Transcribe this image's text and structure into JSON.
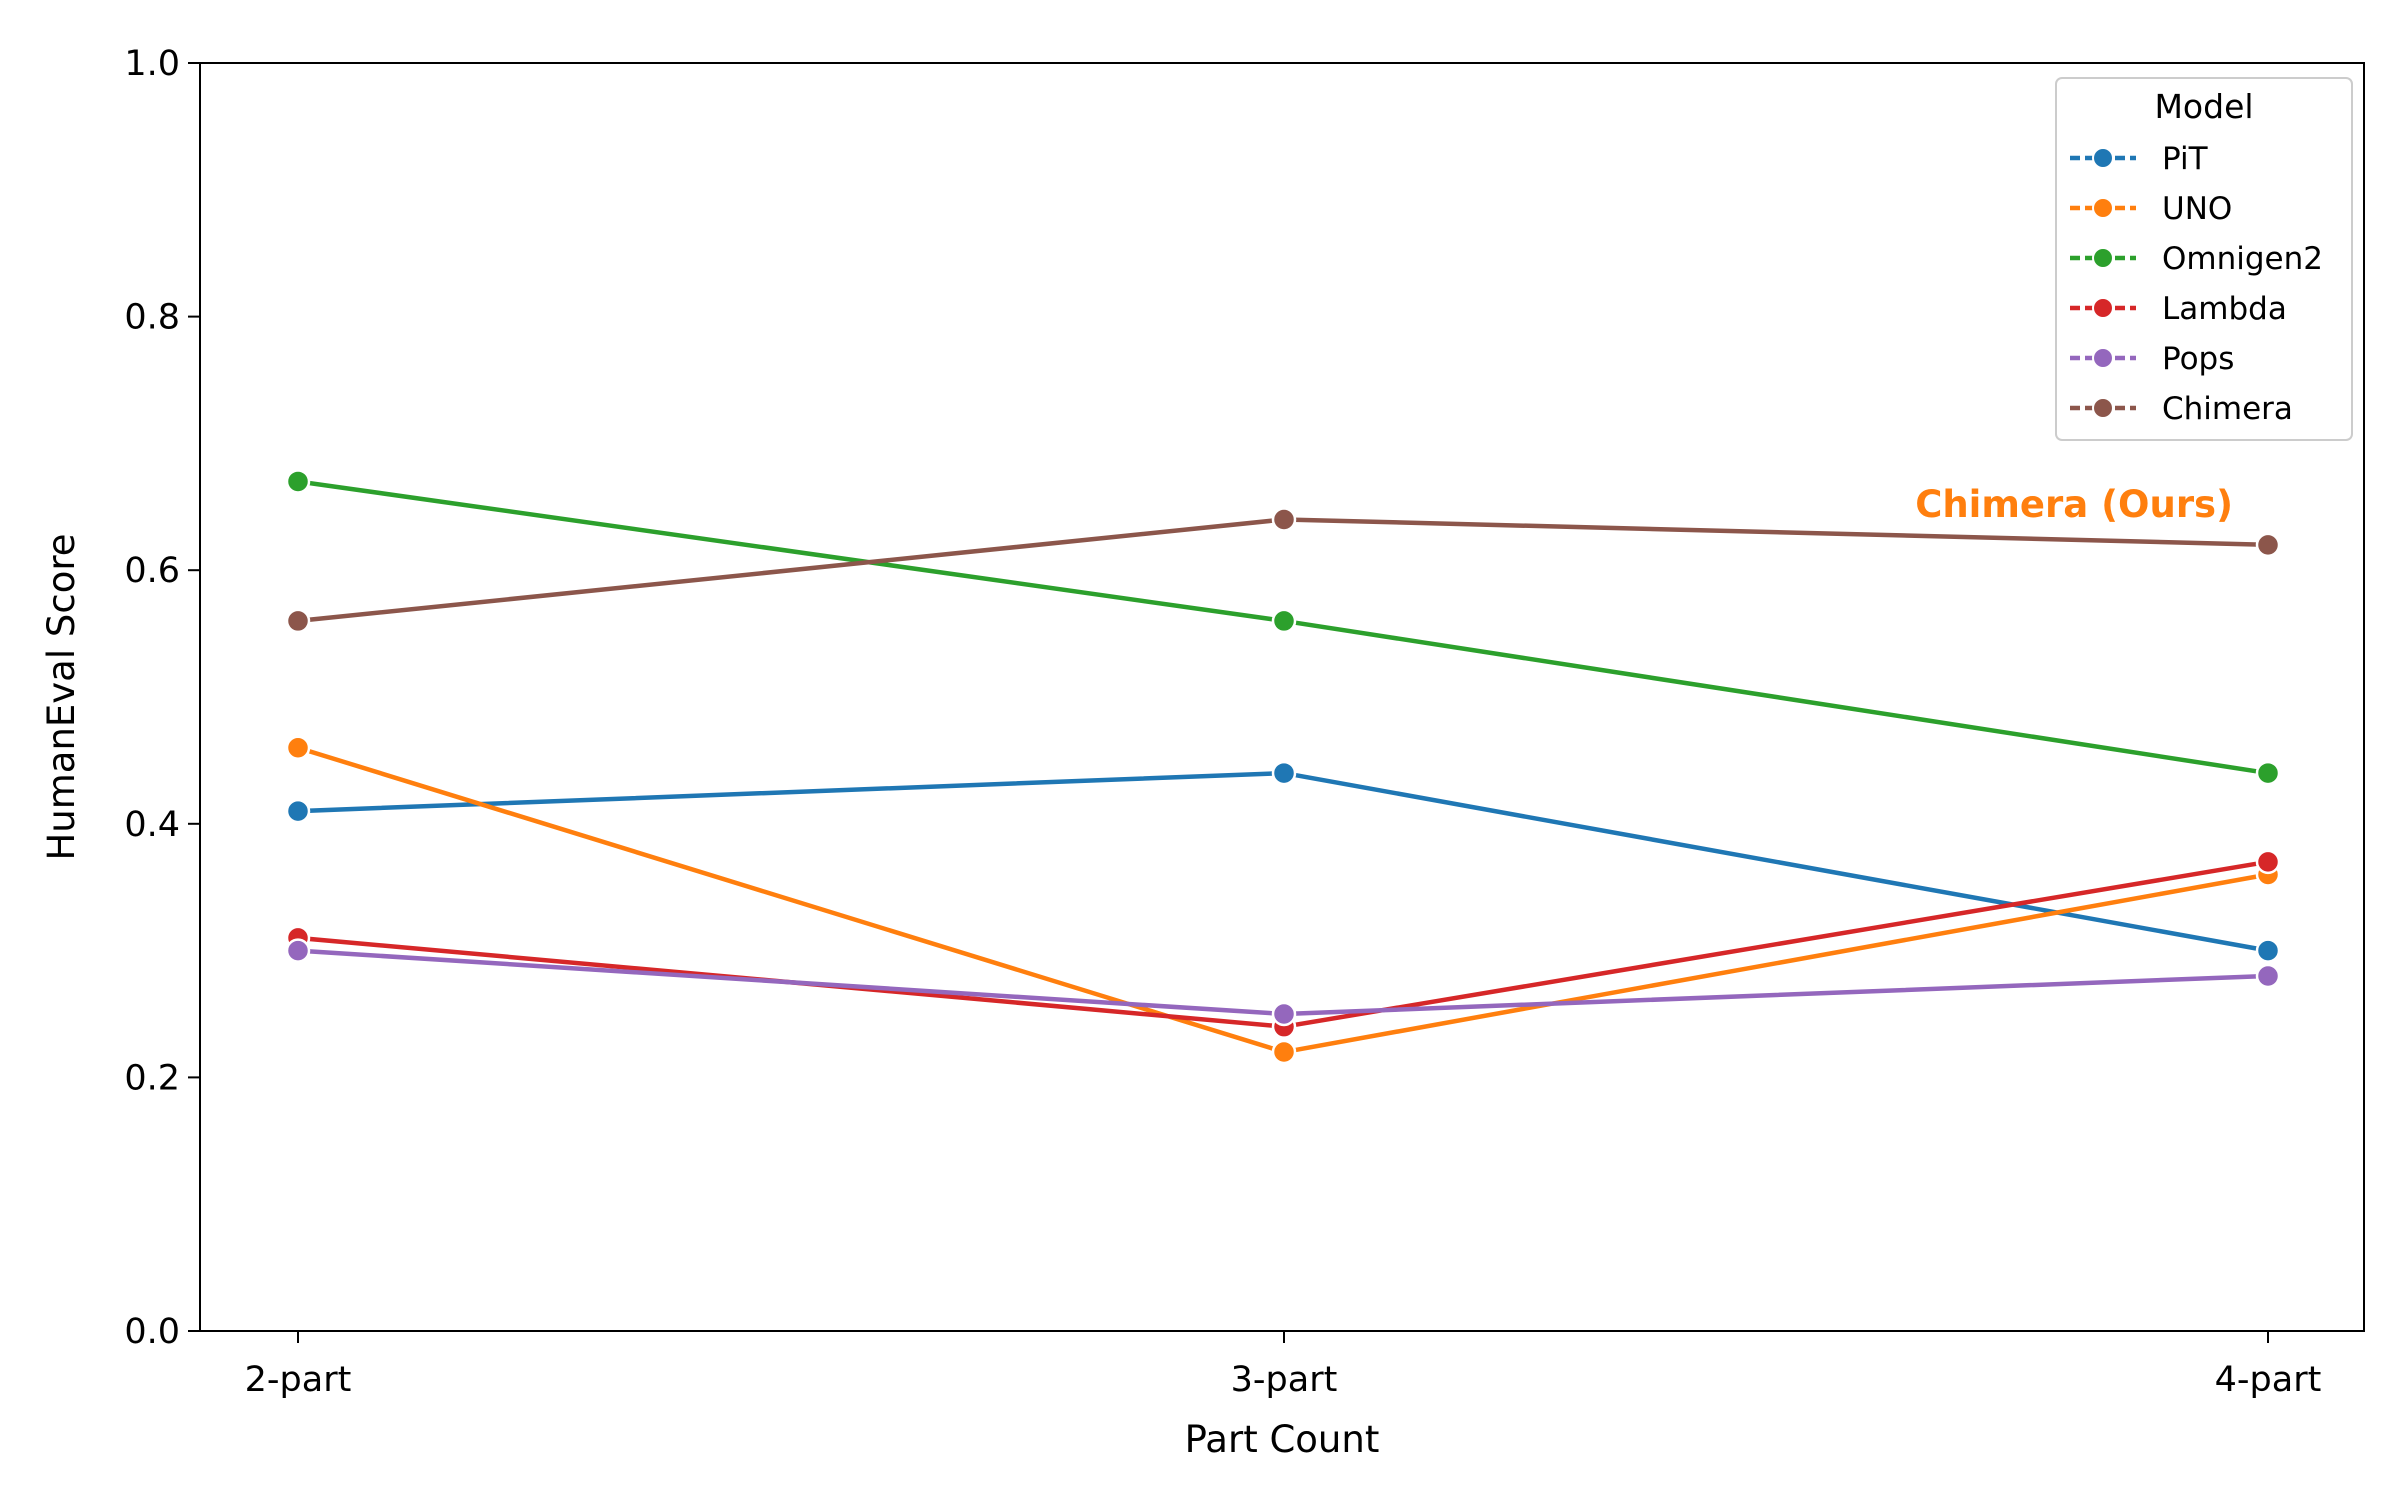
{
  "chart_data": {
    "type": "line",
    "title": "",
    "xlabel": "Part Count",
    "ylabel": "HumanEval Score",
    "categories": [
      "2-part",
      "3-part",
      "4-part"
    ],
    "ylim": [
      0.0,
      1.0
    ],
    "yticks": [
      "0.0",
      "0.2",
      "0.4",
      "0.6",
      "0.8",
      "1.0"
    ],
    "grid": false,
    "legend": {
      "title": "Model",
      "placement": "top-right"
    },
    "series": [
      {
        "name": "PiT",
        "color": "#1f77b4",
        "values": [
          0.41,
          0.44,
          0.3
        ]
      },
      {
        "name": "UNO",
        "color": "#ff7f0e",
        "values": [
          0.46,
          0.22,
          0.36
        ]
      },
      {
        "name": "Omnigen2",
        "color": "#2ca02c",
        "values": [
          0.67,
          0.56,
          0.44
        ]
      },
      {
        "name": "Lambda",
        "color": "#d62728",
        "values": [
          0.31,
          0.24,
          0.37
        ]
      },
      {
        "name": "Pops",
        "color": "#9467bd",
        "values": [
          0.3,
          0.25,
          0.28
        ]
      },
      {
        "name": "Chimera",
        "color": "#8c564b",
        "values": [
          0.56,
          0.64,
          0.62
        ]
      }
    ],
    "annotation": {
      "text": "Chimera (Ours)",
      "color": "#ff7f0e",
      "category": "4-part",
      "value": 0.65
    }
  }
}
